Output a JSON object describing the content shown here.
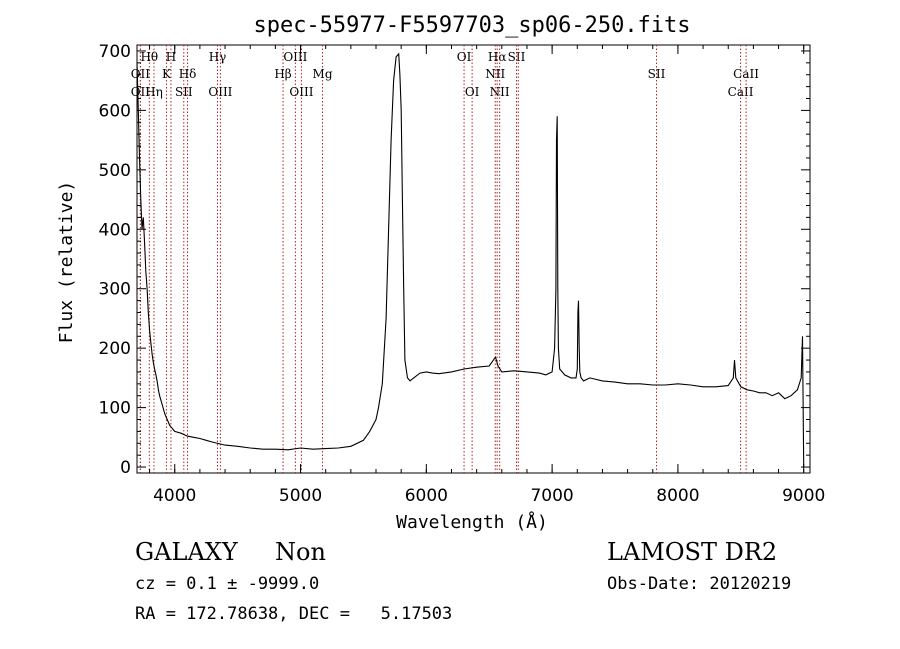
{
  "chart_data": {
    "type": "line",
    "title": "spec-55977-F5597703_sp06-250.fits",
    "xlabel": "Wavelength (Å)",
    "ylabel": "Flux (relative)",
    "xlim": [
      3700,
      9050
    ],
    "ylim": [
      -10,
      710
    ],
    "x_ticks": [
      4000,
      5000,
      6000,
      7000,
      8000,
      9000
    ],
    "y_ticks": [
      0,
      100,
      200,
      300,
      400,
      500,
      600,
      700
    ],
    "line_color": "#000000",
    "marker_color": "#b22222",
    "series": [
      {
        "x": [
          3700,
          3710,
          3720,
          3730,
          3740,
          3750,
          3760,
          3770,
          3780,
          3790,
          3800,
          3810,
          3820,
          3830,
          3840,
          3850,
          3860,
          3870,
          3880,
          3900,
          3920,
          3940,
          3960,
          3980,
          4000,
          4050,
          4100,
          4150,
          4200,
          4250,
          4300,
          4400,
          4500,
          4600,
          4700,
          4800,
          4900,
          5000,
          5100,
          5200,
          5300,
          5400,
          5500,
          5550,
          5600,
          5620,
          5650,
          5680,
          5700,
          5720,
          5740,
          5760,
          5780,
          5790,
          5800,
          5810,
          5820,
          5830,
          5850,
          5870,
          5900,
          5950,
          6000,
          6050,
          6100,
          6200,
          6300,
          6400,
          6500,
          6550,
          6570,
          6600,
          6700,
          6800,
          6900,
          6950,
          7000,
          7020,
          7030,
          7035,
          7040,
          7045,
          7050,
          7060,
          7080,
          7100,
          7150,
          7190,
          7200,
          7205,
          7210,
          7215,
          7220,
          7230,
          7250,
          7300,
          7400,
          7500,
          7600,
          7700,
          7800,
          7900,
          8000,
          8100,
          8200,
          8300,
          8400,
          8440,
          8450,
          8460,
          8500,
          8550,
          8600,
          8650,
          8700,
          8750,
          8800,
          8850,
          8900,
          8950,
          8980,
          8990,
          9000
        ],
        "y": [
          680,
          600,
          520,
          450,
          400,
          420,
          380,
          330,
          300,
          260,
          230,
          210,
          190,
          175,
          165,
          155,
          145,
          130,
          120,
          105,
          90,
          80,
          70,
          65,
          60,
          57,
          52,
          50,
          48,
          45,
          42,
          37,
          35,
          32,
          30,
          30,
          29,
          32,
          30,
          31,
          32,
          35,
          45,
          60,
          80,
          100,
          140,
          250,
          400,
          550,
          650,
          690,
          695,
          660,
          600,
          450,
          300,
          180,
          150,
          145,
          150,
          158,
          160,
          158,
          157,
          160,
          165,
          168,
          170,
          185,
          170,
          160,
          162,
          160,
          158,
          155,
          160,
          200,
          300,
          550,
          590,
          300,
          200,
          165,
          160,
          155,
          150,
          150,
          165,
          260,
          280,
          200,
          160,
          150,
          145,
          150,
          145,
          143,
          140,
          140,
          138,
          138,
          140,
          138,
          135,
          135,
          137,
          150,
          180,
          150,
          135,
          130,
          128,
          125,
          125,
          120,
          125,
          115,
          120,
          130,
          150,
          220,
          0
        ]
      }
    ],
    "markers": [
      {
        "x": 3727,
        "label": "OII",
        "row": 2
      },
      {
        "x": 3727,
        "label": "OII",
        "row": 3
      },
      {
        "x": 3798,
        "label": "Hθ",
        "row": 1
      },
      {
        "x": 3835,
        "label": "Hη",
        "row": 3
      },
      {
        "x": 3934,
        "label": "K",
        "row": 2
      },
      {
        "x": 3970,
        "label": "H",
        "row": 1
      },
      {
        "x": 4072,
        "label": "SII",
        "row": 3
      },
      {
        "x": 4102,
        "label": "Hδ",
        "row": 2
      },
      {
        "x": 4340,
        "label": "Hγ",
        "row": 1
      },
      {
        "x": 4363,
        "label": "OIII",
        "row": 3
      },
      {
        "x": 4861,
        "label": "Hβ",
        "row": 2
      },
      {
        "x": 4959,
        "label": "OIII",
        "row": 1
      },
      {
        "x": 5007,
        "label": "OIII",
        "row": 3
      },
      {
        "x": 5175,
        "label": "Mg",
        "row": 2
      },
      {
        "x": 6300,
        "label": "OI",
        "row": 1
      },
      {
        "x": 6364,
        "label": "OI",
        "row": 3
      },
      {
        "x": 6548,
        "label": "NII",
        "row": 2
      },
      {
        "x": 6563,
        "label": "Hα",
        "row": 1
      },
      {
        "x": 6583,
        "label": "NII",
        "row": 3
      },
      {
        "x": 6717,
        "label": "SII",
        "row": 1
      },
      {
        "x": 6731,
        "label": "",
        "row": 0
      },
      {
        "x": 7830,
        "label": "SII",
        "row": 2
      },
      {
        "x": 8498,
        "label": "CaII",
        "row": 3
      },
      {
        "x": 8542,
        "label": "CaII",
        "row": 2
      }
    ]
  },
  "info": {
    "object_class": "GALAXY",
    "subclass": "Non",
    "survey": "LAMOST DR2",
    "cz_line": "cz = 0.1 ± -9999.0",
    "obs_date": "Obs-Date: 20120219",
    "radec_line": "RA = 172.78638, DEC =   5.17503"
  }
}
